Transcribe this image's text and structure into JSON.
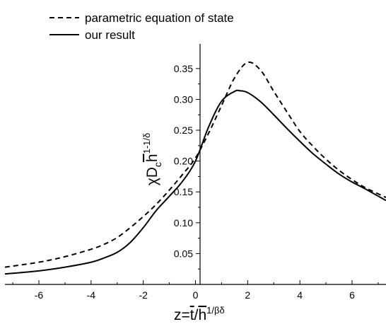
{
  "chart_data": {
    "type": "line",
    "xlabel": {
      "main": "z=",
      "t": "t",
      "slash": "/",
      "h": "h",
      "exp": "1/βδ"
    },
    "ylabel": {
      "chi": "χD",
      "sub": "c",
      "h": "h",
      "exp": "1-1/δ"
    },
    "xlim": [
      -7.3,
      7.3
    ],
    "ylim": [
      0,
      0.39
    ],
    "x_ticks": [
      -6,
      -4,
      -2,
      0,
      2,
      4,
      6
    ],
    "y_ticks": [
      0.05,
      0.1,
      0.15,
      0.2,
      0.25,
      0.3,
      0.35
    ],
    "y_tick_labels": [
      "0.05",
      "0.10",
      "0.15",
      "0.20",
      "0.25",
      "0.30",
      "0.35"
    ],
    "grid": false,
    "legend_position": "top-left",
    "series": [
      {
        "name": "parametric equation of state",
        "style": "dashed",
        "x": [
          -7.3,
          -6,
          -5,
          -4,
          -3.5,
          -3,
          -2.5,
          -2,
          -1.5,
          -1,
          -0.5,
          0,
          0.5,
          1,
          1.5,
          2,
          2.5,
          3,
          3.5,
          4,
          4.5,
          5,
          5.5,
          6,
          6.5,
          7.3
        ],
        "y": [
          0.028,
          0.036,
          0.045,
          0.057,
          0.065,
          0.076,
          0.092,
          0.11,
          0.13,
          0.153,
          0.178,
          0.205,
          0.245,
          0.29,
          0.335,
          0.36,
          0.347,
          0.313,
          0.28,
          0.248,
          0.224,
          0.203,
          0.185,
          0.17,
          0.157,
          0.141
        ]
      },
      {
        "name": "our result",
        "style": "solid",
        "x": [
          -7.3,
          -6,
          -5,
          -4,
          -3.5,
          -3,
          -2.5,
          -2,
          -1.5,
          -1,
          -0.5,
          0,
          0.5,
          1,
          1.5,
          1.7,
          2,
          2.5,
          3,
          3.5,
          4,
          4.5,
          5,
          5.5,
          6,
          6.5,
          7.3
        ],
        "y": [
          0.017,
          0.022,
          0.028,
          0.036,
          0.043,
          0.052,
          0.068,
          0.092,
          0.12,
          0.143,
          0.167,
          0.2,
          0.255,
          0.297,
          0.313,
          0.314,
          0.311,
          0.296,
          0.275,
          0.253,
          0.232,
          0.212,
          0.195,
          0.179,
          0.166,
          0.155,
          0.136
        ]
      }
    ]
  }
}
